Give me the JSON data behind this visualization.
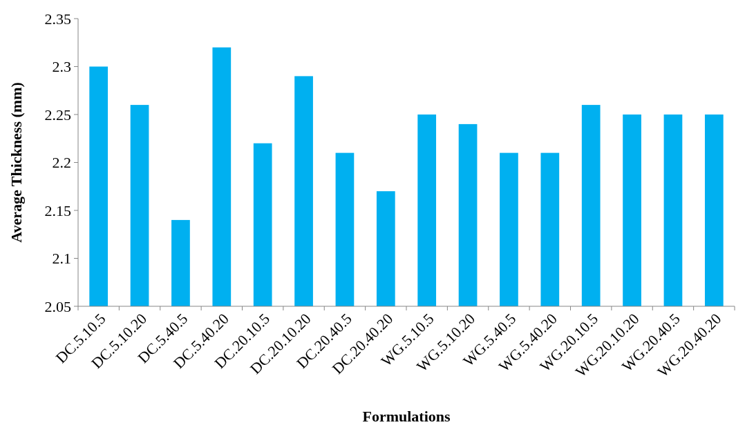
{
  "chart_data": {
    "type": "bar",
    "xlabel": "Formulations",
    "ylabel": "Average Thickness (mm)",
    "categories": [
      "DC.5.10.5",
      "DC.5.10.20",
      "DC.5.40.5",
      "DC.5.40.20",
      "DC.20.10.5",
      "DC.20.10.20",
      "DC.20.40.5",
      "DC.20.40.20",
      "WG.5.10.5",
      "WG.5.10.20",
      "WG.5.40.5",
      "WG.5.40.20",
      "WG.20.10.5",
      "WG.20.10.20",
      "WG.20.40.5",
      "WG.20.40.20"
    ],
    "values": [
      2.3,
      2.26,
      2.14,
      2.32,
      2.22,
      2.29,
      2.21,
      2.17,
      2.25,
      2.24,
      2.21,
      2.21,
      2.26,
      2.25,
      2.25,
      2.25
    ],
    "color": "#00b0f0",
    "ylim": [
      2.05,
      2.35
    ],
    "yticks": [
      {
        "value": 2.05,
        "label": "2.05"
      },
      {
        "value": 2.1,
        "label": "2.1"
      },
      {
        "value": 2.15,
        "label": "2.15"
      },
      {
        "value": 2.2,
        "label": "2.2"
      },
      {
        "value": 2.25,
        "label": "2.25"
      },
      {
        "value": 2.3,
        "label": "2.3"
      },
      {
        "value": 2.35,
        "label": "2.35"
      }
    ],
    "grid": false
  }
}
